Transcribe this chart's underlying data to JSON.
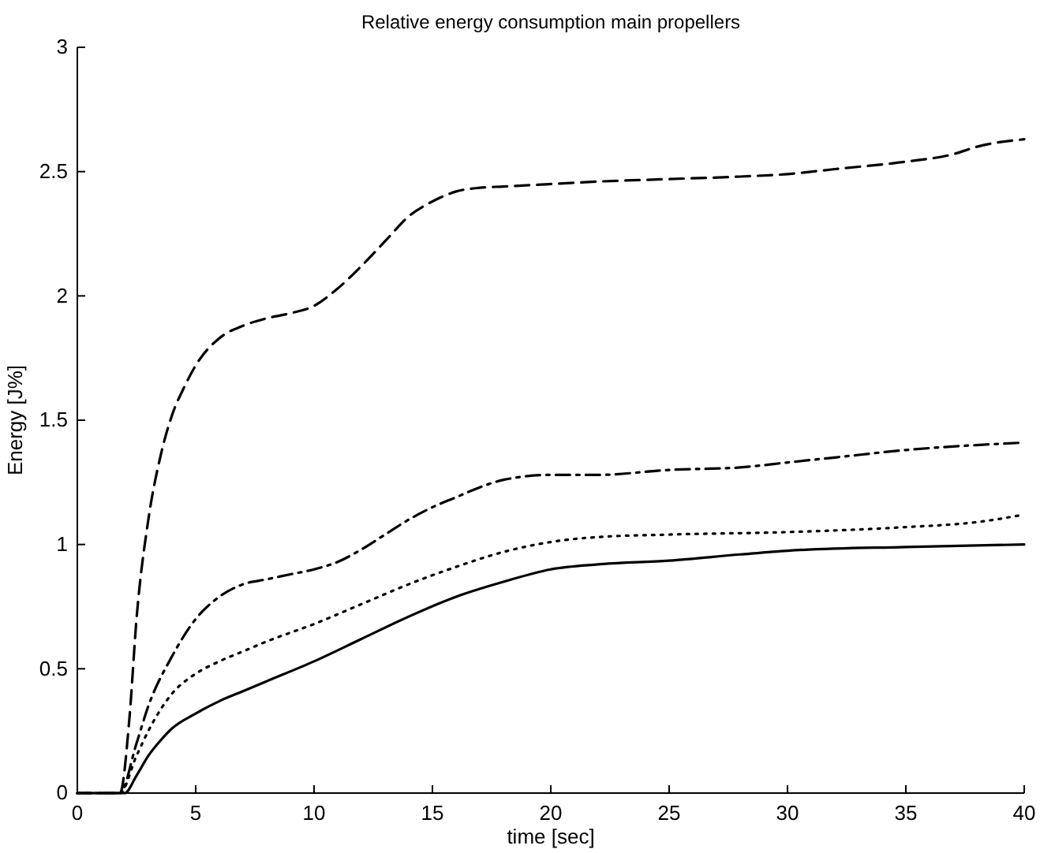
{
  "chart_data": {
    "type": "line",
    "title": "Relative energy consumption main propellers",
    "xlabel": "time [sec]",
    "ylabel": "Energy [J%]",
    "xlim": [
      0,
      40
    ],
    "xticks": [
      0,
      5,
      10,
      15,
      20,
      25,
      30,
      35,
      40
    ],
    "ylim": [
      0,
      3
    ],
    "yticks": [
      0,
      0.5,
      1,
      1.5,
      2,
      2.5,
      3
    ],
    "series": [
      {
        "color": "#000000",
        "line_style": "dashed",
        "x": [
          0,
          1.8,
          2.2,
          2.5,
          3,
          3.5,
          4,
          4.5,
          5,
          6,
          7,
          8,
          9,
          10,
          11,
          12,
          13,
          14,
          15,
          16,
          17,
          18,
          20,
          22,
          25,
          28,
          30,
          32,
          35,
          37,
          38,
          40
        ],
        "values": [
          0,
          0,
          0.3,
          0.7,
          1.1,
          1.35,
          1.52,
          1.63,
          1.72,
          1.83,
          1.88,
          1.91,
          1.93,
          1.96,
          2.03,
          2.12,
          2.22,
          2.32,
          2.38,
          2.42,
          2.435,
          2.44,
          2.45,
          2.46,
          2.47,
          2.48,
          2.49,
          2.51,
          2.54,
          2.57,
          2.6,
          2.63
        ]
      },
      {
        "color": "#000000",
        "line_style": "dashdot",
        "x": [
          0,
          1.8,
          2.5,
          3,
          4,
          5,
          6,
          7,
          8,
          9,
          10,
          11,
          12,
          13,
          14,
          15,
          16,
          17,
          18,
          20,
          22,
          25,
          28,
          30,
          32,
          35,
          38,
          40
        ],
        "values": [
          0,
          0,
          0.2,
          0.35,
          0.55,
          0.7,
          0.79,
          0.84,
          0.86,
          0.88,
          0.9,
          0.93,
          0.98,
          1.04,
          1.1,
          1.15,
          1.19,
          1.23,
          1.26,
          1.28,
          1.28,
          1.3,
          1.31,
          1.33,
          1.35,
          1.38,
          1.4,
          1.41
        ]
      },
      {
        "color": "#000000",
        "line_style": "dotted",
        "x": [
          0,
          1.8,
          2.5,
          3,
          4,
          5,
          6,
          7,
          8,
          10,
          12,
          14,
          16,
          18,
          20,
          22,
          25,
          30,
          35,
          38,
          40
        ],
        "values": [
          0,
          0,
          0.15,
          0.25,
          0.4,
          0.48,
          0.53,
          0.57,
          0.61,
          0.68,
          0.76,
          0.84,
          0.91,
          0.97,
          1.01,
          1.03,
          1.04,
          1.05,
          1.07,
          1.09,
          1.12
        ]
      },
      {
        "color": "#000000",
        "line_style": "solid",
        "x": [
          0,
          2,
          2.5,
          3,
          3.5,
          4,
          5,
          6,
          7,
          8,
          10,
          12,
          14,
          16,
          18,
          20,
          22,
          25,
          28,
          30,
          35,
          40
        ],
        "values": [
          0,
          0,
          0.07,
          0.15,
          0.21,
          0.26,
          0.32,
          0.37,
          0.41,
          0.45,
          0.53,
          0.62,
          0.71,
          0.79,
          0.85,
          0.9,
          0.92,
          0.935,
          0.96,
          0.975,
          0.99,
          1.0
        ]
      }
    ]
  }
}
